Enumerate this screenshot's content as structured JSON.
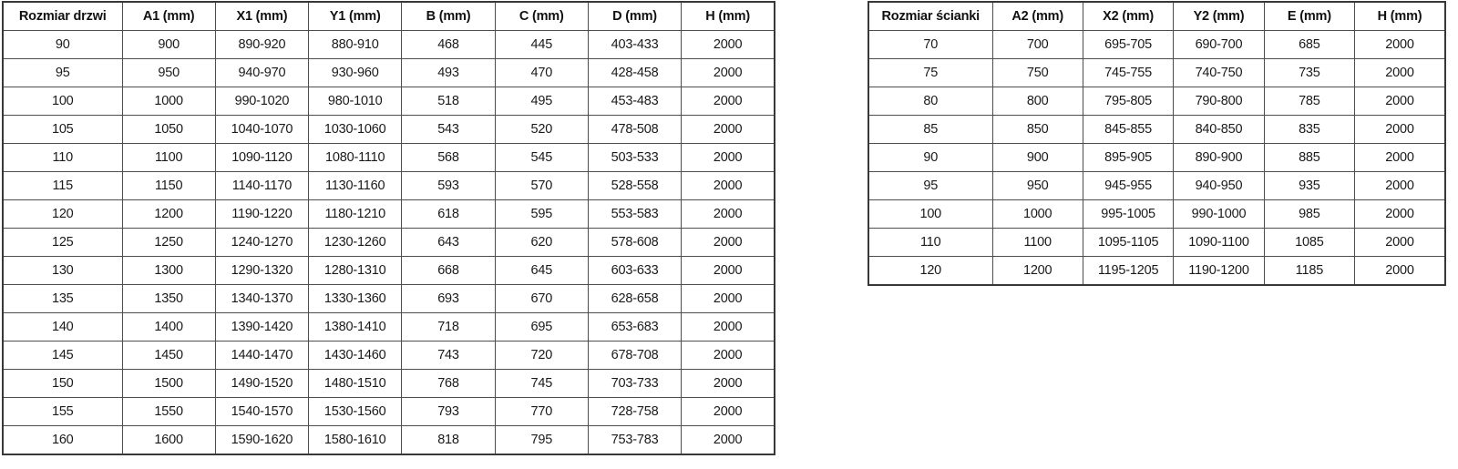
{
  "colors": {
    "background": "#ffffff",
    "border": "#4d4d4d",
    "text": "#1a1a1a"
  },
  "tables": [
    {
      "name": "door-size-table",
      "headers": [
        "Rozmiar drzwi",
        "A1 (mm)",
        "X1 (mm)",
        "Y1 (mm)",
        "B (mm)",
        "C (mm)",
        "D (mm)",
        "H (mm)"
      ],
      "rows": [
        [
          "90",
          "900",
          "890-920",
          "880-910",
          "468",
          "445",
          "403-433",
          "2000"
        ],
        [
          "95",
          "950",
          "940-970",
          "930-960",
          "493",
          "470",
          "428-458",
          "2000"
        ],
        [
          "100",
          "1000",
          "990-1020",
          "980-1010",
          "518",
          "495",
          "453-483",
          "2000"
        ],
        [
          "105",
          "1050",
          "1040-1070",
          "1030-1060",
          "543",
          "520",
          "478-508",
          "2000"
        ],
        [
          "110",
          "1100",
          "1090-1120",
          "1080-1110",
          "568",
          "545",
          "503-533",
          "2000"
        ],
        [
          "115",
          "1150",
          "1140-1170",
          "1130-1160",
          "593",
          "570",
          "528-558",
          "2000"
        ],
        [
          "120",
          "1200",
          "1190-1220",
          "1180-1210",
          "618",
          "595",
          "553-583",
          "2000"
        ],
        [
          "125",
          "1250",
          "1240-1270",
          "1230-1260",
          "643",
          "620",
          "578-608",
          "2000"
        ],
        [
          "130",
          "1300",
          "1290-1320",
          "1280-1310",
          "668",
          "645",
          "603-633",
          "2000"
        ],
        [
          "135",
          "1350",
          "1340-1370",
          "1330-1360",
          "693",
          "670",
          "628-658",
          "2000"
        ],
        [
          "140",
          "1400",
          "1390-1420",
          "1380-1410",
          "718",
          "695",
          "653-683",
          "2000"
        ],
        [
          "145",
          "1450",
          "1440-1470",
          "1430-1460",
          "743",
          "720",
          "678-708",
          "2000"
        ],
        [
          "150",
          "1500",
          "1490-1520",
          "1480-1510",
          "768",
          "745",
          "703-733",
          "2000"
        ],
        [
          "155",
          "1550",
          "1540-1570",
          "1530-1560",
          "793",
          "770",
          "728-758",
          "2000"
        ],
        [
          "160",
          "1600",
          "1590-1620",
          "1580-1610",
          "818",
          "795",
          "753-783",
          "2000"
        ]
      ]
    },
    {
      "name": "wall-panel-size-table",
      "headers": [
        "Rozmiar ścianki",
        "A2 (mm)",
        "X2 (mm)",
        "Y2 (mm)",
        "E (mm)",
        "H (mm)"
      ],
      "rows": [
        [
          "70",
          "700",
          "695-705",
          "690-700",
          "685",
          "2000"
        ],
        [
          "75",
          "750",
          "745-755",
          "740-750",
          "735",
          "2000"
        ],
        [
          "80",
          "800",
          "795-805",
          "790-800",
          "785",
          "2000"
        ],
        [
          "85",
          "850",
          "845-855",
          "840-850",
          "835",
          "2000"
        ],
        [
          "90",
          "900",
          "895-905",
          "890-900",
          "885",
          "2000"
        ],
        [
          "95",
          "950",
          "945-955",
          "940-950",
          "935",
          "2000"
        ],
        [
          "100",
          "1000",
          "995-1005",
          "990-1000",
          "985",
          "2000"
        ],
        [
          "110",
          "1100",
          "1095-1105",
          "1090-1100",
          "1085",
          "2000"
        ],
        [
          "120",
          "1200",
          "1195-1205",
          "1190-1200",
          "1185",
          "2000"
        ]
      ]
    }
  ]
}
